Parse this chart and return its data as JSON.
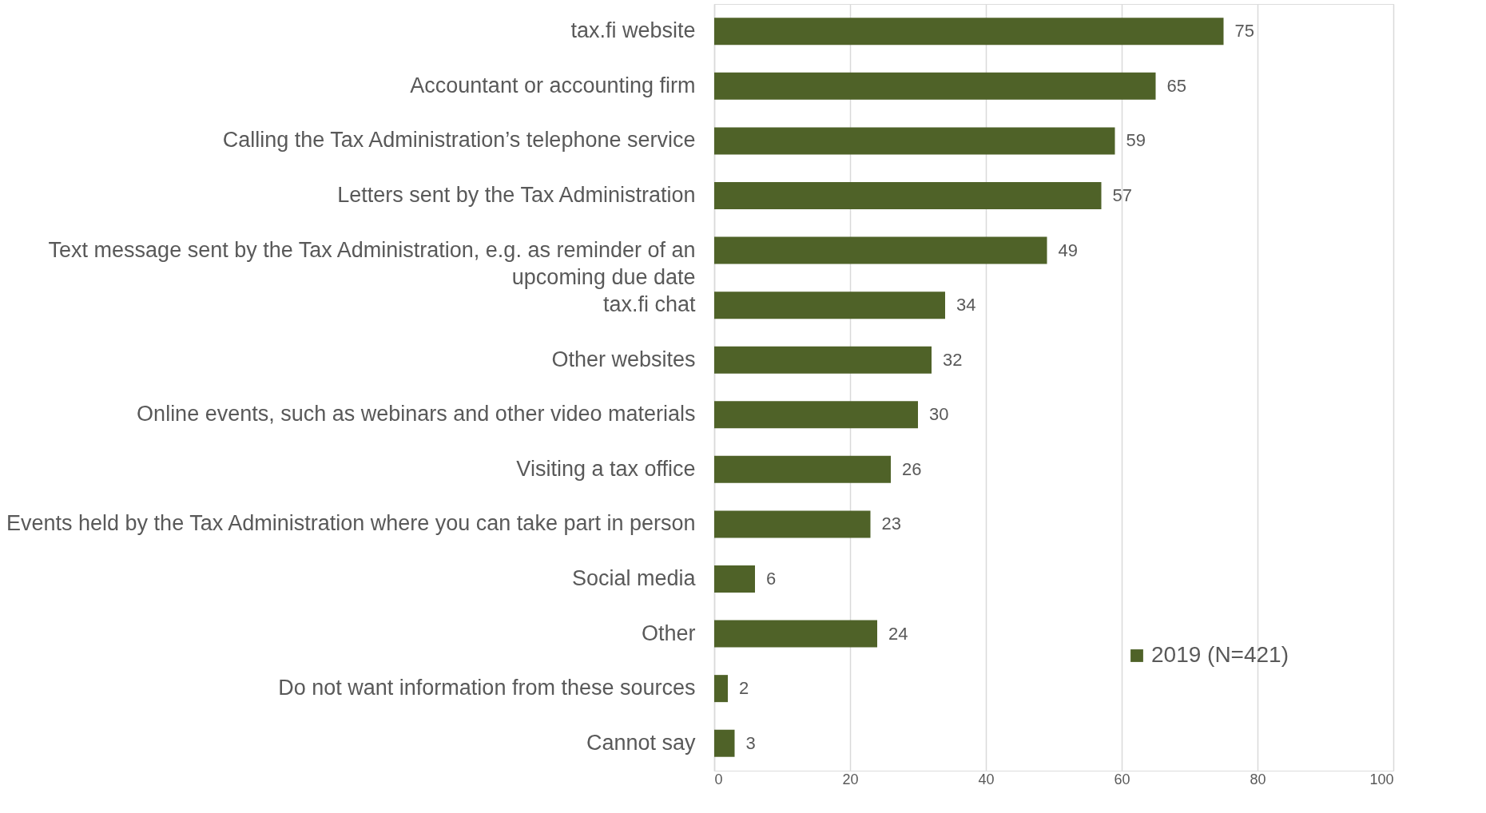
{
  "chart_data": {
    "type": "bar",
    "orientation": "horizontal",
    "categories": [
      "tax.fi website",
      "Accountant or accounting firm",
      "Calling the Tax Administration’s telephone service",
      "Letters sent by the Tax Administration",
      "Text message sent by the Tax Administration, e.g. as reminder of an upcoming due date",
      "tax.fi chat",
      "Other websites",
      "Online events, such as webinars and other video materials",
      "Visiting a tax office",
      "Events held by the Tax Administration where you can take part in person",
      "Social media",
      "Other",
      "Do not want information from these sources",
      "Cannot say"
    ],
    "series": [
      {
        "name": "2019 (N=421)",
        "color": "#4f6228",
        "values": [
          75,
          65,
          59,
          57,
          49,
          34,
          32,
          30,
          26,
          23,
          6,
          24,
          2,
          3
        ]
      }
    ],
    "xlim": [
      0,
      100
    ],
    "xticks": [
      0,
      20,
      40,
      60,
      80,
      100
    ],
    "grid": "x",
    "legend": "bottom right",
    "data_labels": true
  }
}
